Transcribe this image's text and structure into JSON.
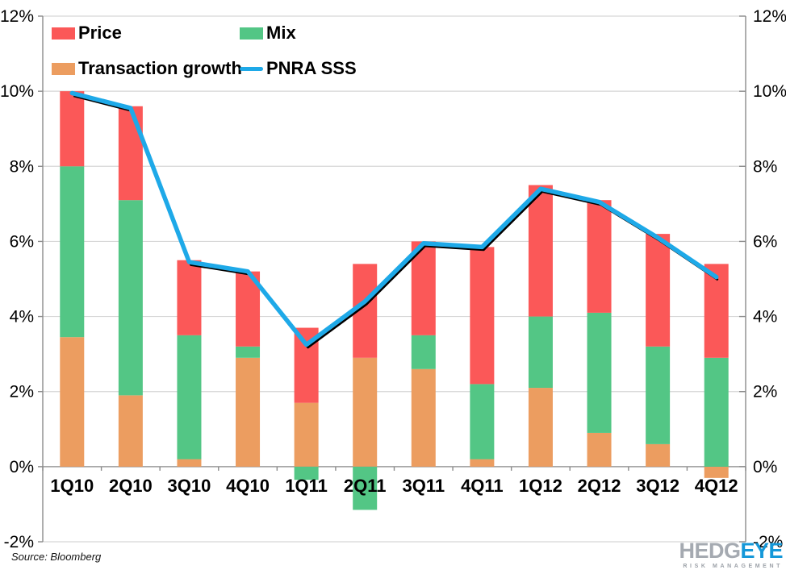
{
  "chart_data": {
    "type": "bar",
    "subtype": "stacked-bars-with-line-overlay",
    "title": "",
    "categories": [
      "1Q10",
      "2Q10",
      "3Q10",
      "4Q10",
      "1Q11",
      "2Q11",
      "3Q11",
      "4Q11",
      "1Q12",
      "2Q12",
      "3Q12",
      "4Q12"
    ],
    "series": [
      {
        "name": "Transaction growth",
        "type": "bar",
        "color": "#EC9D60",
        "values": [
          3.45,
          1.9,
          0.2,
          2.9,
          1.7,
          2.9,
          2.6,
          0.2,
          2.1,
          0.9,
          0.6,
          -0.3
        ]
      },
      {
        "name": "Mix",
        "type": "bar",
        "color": "#53C685",
        "values": [
          4.55,
          5.2,
          3.3,
          0.3,
          -0.35,
          -1.15,
          0.9,
          2.0,
          1.9,
          3.2,
          2.6,
          2.9
        ]
      },
      {
        "name": "Price",
        "type": "bar",
        "color": "#FB5858",
        "values": [
          2.0,
          2.5,
          2.0,
          2.0,
          2.0,
          2.5,
          2.5,
          3.65,
          3.5,
          3.0,
          3.0,
          2.5
        ]
      },
      {
        "name": "PNRA SSS",
        "type": "line",
        "color": "#1EA9E8",
        "shadow_color": "#000000",
        "values": [
          9.95,
          9.55,
          5.45,
          5.2,
          3.25,
          4.4,
          5.95,
          5.85,
          7.4,
          7.05,
          6.1,
          5.05
        ]
      }
    ],
    "xlabel": "",
    "ylabel": "",
    "ylim": [
      -2,
      12
    ],
    "y_ticks": [
      {
        "value": 12,
        "label": "12%"
      },
      {
        "value": 10,
        "label": "10%"
      },
      {
        "value": 8,
        "label": "8%"
      },
      {
        "value": 6,
        "label": "6%"
      },
      {
        "value": 4,
        "label": "4%"
      },
      {
        "value": 2,
        "label": "2%"
      },
      {
        "value": 0,
        "label": "0%"
      },
      {
        "value": -2,
        "label": "-2%"
      }
    ],
    "dual_y_axis": true,
    "grid": true,
    "grid_color": "#D6D6D6",
    "axis_color": "#8C8C8C",
    "legend_position": "top-left-inside"
  },
  "legend": {
    "items": [
      {
        "label": "Price",
        "swatch": "box",
        "color": "#FB5858"
      },
      {
        "label": "Mix",
        "swatch": "box",
        "color": "#53C685"
      },
      {
        "label": "Transaction growth",
        "swatch": "box",
        "color": "#EC9D60"
      },
      {
        "label": "PNRA SSS",
        "swatch": "line",
        "color": "#1EA9E8"
      }
    ]
  },
  "footer": {
    "source": "Source: Bloomberg"
  },
  "logo": {
    "text_primary": "HEDG",
    "text_accent": "EYE",
    "tagline": "RISK MANAGEMENT",
    "primary_color": "#A5AAB1",
    "accent_color": "#1598D9",
    "tagline_color": "#9CA1A8"
  }
}
